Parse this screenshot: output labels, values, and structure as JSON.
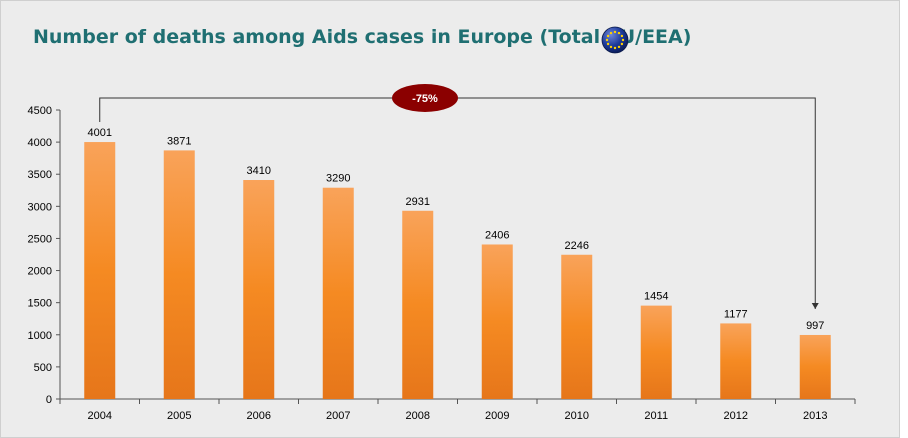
{
  "title": "Number of deaths among Aids cases in Europe  (Total EU/EEA)",
  "icon": "eu-flag-globe-icon",
  "colors": {
    "background": "#ececec",
    "bar_top": "#f9a35a",
    "bar_mid": "#f58a22",
    "bar_bottom": "#e6761a",
    "title": "#1f6f72",
    "badge": "#8b0000",
    "connector": "#333333"
  },
  "chart_data": {
    "type": "bar",
    "title": "Number of deaths among Aids cases in Europe  (Total EU/EEA)",
    "xlabel": "",
    "ylabel": "",
    "categories": [
      "2004",
      "2005",
      "2006",
      "2007",
      "2008",
      "2009",
      "2010",
      "2011",
      "2012",
      "2013"
    ],
    "values": [
      4001,
      3871,
      3410,
      3290,
      2931,
      2406,
      2246,
      1454,
      1177,
      997
    ],
    "data_labels": [
      "4001",
      "3871",
      "3410",
      "3290",
      "2931",
      "2406",
      "2246",
      "1454",
      "1177",
      "997"
    ],
    "ylim": [
      0,
      4500
    ],
    "yticks": [
      0,
      500,
      1000,
      1500,
      2000,
      2500,
      3000,
      3500,
      4000,
      4500
    ],
    "grid": false,
    "legend": "none",
    "annotation": {
      "text": "-75%",
      "from": "2004",
      "to": "2013"
    }
  }
}
